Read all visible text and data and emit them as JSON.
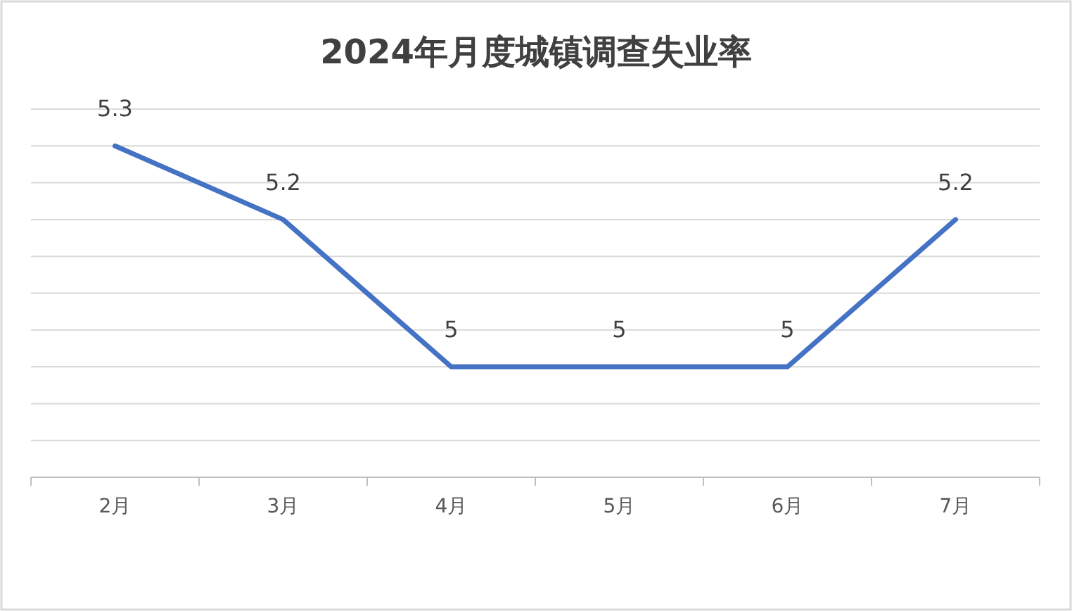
{
  "chart_data": {
    "type": "line",
    "title": "2024年月度城镇调查失业率",
    "categories": [
      "2月",
      "3月",
      "4月",
      "5月",
      "6月",
      "7月"
    ],
    "series": [
      {
        "color": "#4472c4",
        "values": [
          5.3,
          5.2,
          5,
          5,
          5,
          5.2
        ]
      }
    ],
    "ylim": [
      4.85,
      5.35
    ],
    "yticks": [
      {
        "value": 4.9,
        "label": null
      },
      {
        "value": 4.95,
        "label": null
      },
      {
        "value": 5.0,
        "label": null
      },
      {
        "value": 5.05,
        "label": null
      },
      {
        "value": 5.1,
        "label": null
      },
      {
        "value": 5.15,
        "label": null
      },
      {
        "value": 5.2,
        "label": null
      },
      {
        "value": 5.25,
        "label": null
      },
      {
        "value": 5.3,
        "label": null
      },
      {
        "value": 5.35,
        "label": null
      }
    ],
    "grid": "y",
    "data_labels": true,
    "marker": "none",
    "line_style": "solid"
  }
}
